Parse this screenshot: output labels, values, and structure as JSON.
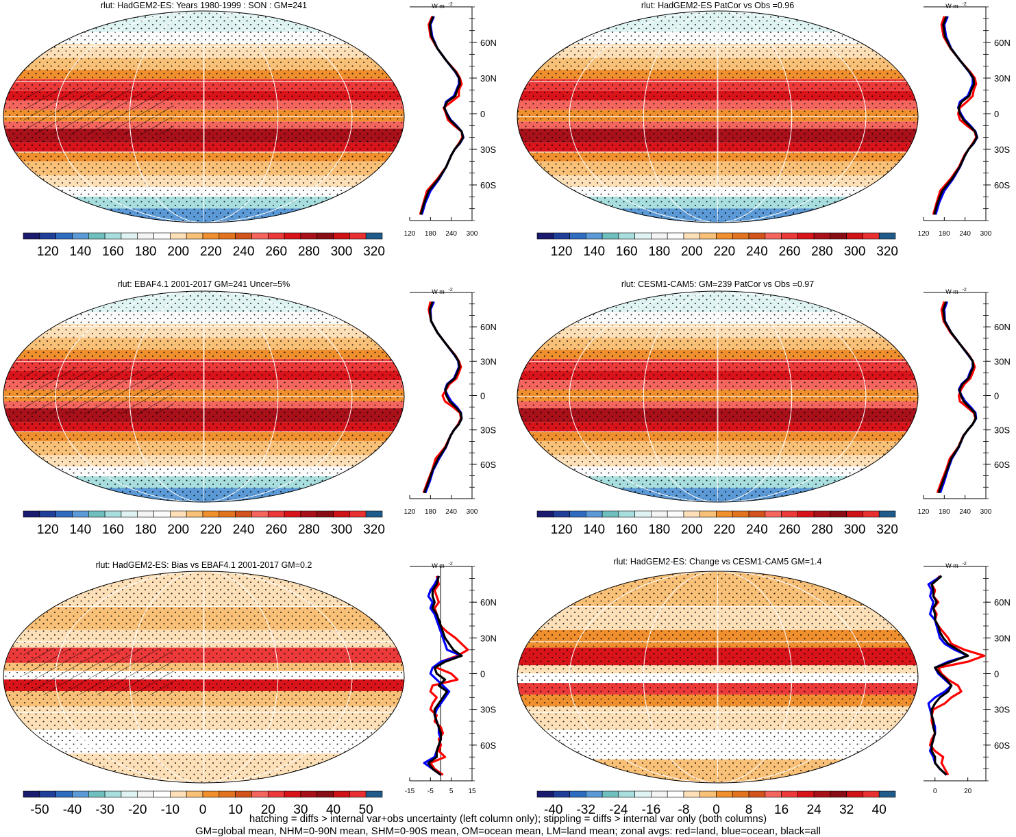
{
  "figure": {
    "caption_line1": "hatching = diffs > internal var+obs uncertainty (left column only); stippling = diffs > internal var only (both columns)",
    "caption_line2": "GM=global mean, NHM=0-90N mean, SHM=0-90S mean, OM=ocean mean, LM=land mean; zonal avgs: red=land, blue=ocean, black=all"
  },
  "colors": {
    "abs_palette": [
      "#1a1a6e",
      "#1f3f99",
      "#2e6cc2",
      "#5b9ad6",
      "#6fbfbf",
      "#a8dede",
      "#dff3f3",
      "#f4f4f4",
      "#fbfbfb",
      "#fde0b8",
      "#f9c078",
      "#ef8f2e",
      "#e3741f",
      "#d2531c",
      "#f4655e",
      "#ec3a3a",
      "#d8141a",
      "#a8101a",
      "#880d15",
      "#cf1216",
      "#e83030",
      "#1f5c8c"
    ],
    "diff_palette": [
      "#1a1a6e",
      "#1f3f99",
      "#2e6cc2",
      "#5b9ad6",
      "#6fbfbf",
      "#a8dede",
      "#dff3f3",
      "#f4f4f4",
      "#ffffff",
      "#fde0b8",
      "#f9c078",
      "#ef8f2e",
      "#e3741f",
      "#d2531c",
      "#f4655e",
      "#ec3a3a",
      "#d8141a",
      "#a8101a",
      "#880d15",
      "#cf1216",
      "#e83030",
      "#1f5c8c"
    ],
    "land": "#ff0000",
    "ocean": "#0000ff",
    "all": "#000000"
  },
  "chart_data": [
    {
      "type": "heatmap",
      "title": "rlut: HadGEM2-ES: Years 1980-1999 : SON : GM=241",
      "colorbar_ticks": [
        "120",
        "140",
        "160",
        "180",
        "200",
        "220",
        "240",
        "260",
        "280",
        "300",
        "320"
      ],
      "profile_unit": "W m",
      "profile_unit_exp": "-2",
      "profile_xticks": [
        "120",
        "180",
        "240",
        "300"
      ],
      "profile_xrange": [
        120,
        300
      ],
      "lat_ticks": [
        "60N",
        "30N",
        "0",
        "30S",
        "60S"
      ],
      "lat_values": [
        60,
        30,
        0,
        -30,
        -60
      ],
      "zero_line": false,
      "lat": [
        82,
        75,
        65,
        55,
        45,
        35,
        30,
        25,
        20,
        15,
        10,
        5,
        0,
        -5,
        -10,
        -15,
        -20,
        -25,
        -30,
        -35,
        -45,
        -55,
        -65,
        -75,
        -85
      ],
      "series": [
        {
          "name": "land",
          "values": [
            185,
            175,
            180,
            200,
            225,
            255,
            265,
            270,
            262,
            262,
            240,
            218,
            225,
            230,
            248,
            270,
            272,
            262,
            250,
            240,
            225,
            200,
            170,
            160,
            150
          ]
        },
        {
          "name": "ocean",
          "values": [
            190,
            180,
            185,
            200,
            225,
            252,
            262,
            262,
            255,
            248,
            225,
            220,
            228,
            238,
            255,
            270,
            275,
            265,
            250,
            240,
            225,
            205,
            180,
            165,
            155
          ]
        },
        {
          "name": "all",
          "values": [
            188,
            178,
            183,
            200,
            225,
            253,
            263,
            265,
            257,
            252,
            228,
            220,
            227,
            236,
            253,
            270,
            274,
            264,
            250,
            240,
            225,
            203,
            175,
            162,
            152
          ]
        }
      ]
    },
    {
      "type": "heatmap",
      "title": "rlut: HadGEM2-ES PatCor vs Obs =0.96",
      "colorbar_ticks": [
        "120",
        "140",
        "160",
        "180",
        "200",
        "220",
        "240",
        "260",
        "280",
        "300",
        "320"
      ],
      "profile_unit": "W m",
      "profile_unit_exp": "-2",
      "profile_xticks": [
        "120",
        "180",
        "240",
        "300"
      ],
      "profile_xrange": [
        120,
        300
      ],
      "lat_ticks": [
        "60N",
        "30N",
        "0",
        "30S",
        "60S"
      ],
      "lat_values": [
        60,
        30,
        0,
        -30,
        -60
      ],
      "zero_line": false,
      "lat": [
        82,
        75,
        65,
        55,
        45,
        35,
        30,
        25,
        20,
        15,
        10,
        5,
        0,
        -5,
        -10,
        -15,
        -20,
        -25,
        -30,
        -35,
        -45,
        -55,
        -65,
        -75,
        -85
      ],
      "series": [
        {
          "name": "land",
          "values": [
            180,
            172,
            178,
            198,
            225,
            255,
            268,
            272,
            265,
            262,
            245,
            225,
            220,
            225,
            245,
            268,
            272,
            262,
            250,
            238,
            222,
            198,
            168,
            158,
            148
          ]
        },
        {
          "name": "ocean",
          "values": [
            190,
            180,
            185,
            200,
            225,
            252,
            262,
            262,
            255,
            248,
            225,
            220,
            228,
            238,
            255,
            270,
            275,
            265,
            250,
            240,
            225,
            205,
            180,
            165,
            155
          ]
        },
        {
          "name": "all",
          "values": [
            186,
            177,
            182,
            199,
            225,
            253,
            264,
            266,
            258,
            252,
            230,
            221,
            225,
            235,
            252,
            269,
            274,
            264,
            250,
            240,
            224,
            202,
            174,
            161,
            151
          ]
        }
      ]
    },
    {
      "type": "heatmap",
      "title": "rlut: EBAF4.1 2001-2017 GM=241 Uncer=5%",
      "colorbar_ticks": [
        "120",
        "140",
        "160",
        "180",
        "200",
        "220",
        "240",
        "260",
        "280",
        "300",
        "320"
      ],
      "profile_unit": "W m",
      "profile_unit_exp": "-2",
      "profile_xticks": [
        "120",
        "180",
        "240",
        "300"
      ],
      "profile_xrange": [
        120,
        300
      ],
      "lat_ticks": [
        "60N",
        "30N",
        "0",
        "30S",
        "60S"
      ],
      "lat_values": [
        60,
        30,
        0,
        -30,
        -60
      ],
      "zero_line": false,
      "lat": [
        82,
        75,
        65,
        55,
        45,
        35,
        30,
        25,
        20,
        15,
        10,
        5,
        0,
        -5,
        -10,
        -15,
        -20,
        -25,
        -30,
        -35,
        -45,
        -55,
        -65,
        -75,
        -85
      ],
      "series": [
        {
          "name": "land",
          "values": [
            180,
            175,
            182,
            200,
            225,
            252,
            262,
            268,
            262,
            255,
            235,
            225,
            215,
            222,
            245,
            265,
            268,
            260,
            248,
            238,
            222,
            195,
            185,
            172,
            160
          ]
        },
        {
          "name": "ocean",
          "values": [
            190,
            180,
            182,
            200,
            225,
            250,
            260,
            262,
            255,
            248,
            228,
            222,
            230,
            240,
            256,
            268,
            270,
            262,
            248,
            238,
            225,
            205,
            188,
            178,
            165
          ]
        },
        {
          "name": "all",
          "values": [
            186,
            178,
            182,
            200,
            225,
            251,
            261,
            264,
            257,
            250,
            230,
            223,
            226,
            235,
            252,
            267,
            270,
            262,
            248,
            238,
            224,
            202,
            186,
            175,
            162
          ]
        }
      ]
    },
    {
      "type": "heatmap",
      "title": "rlut: CESM1-CAM5: GM=239 PatCor vs Obs =0.97",
      "colorbar_ticks": [
        "120",
        "140",
        "160",
        "180",
        "200",
        "220",
        "240",
        "260",
        "280",
        "300",
        "320"
      ],
      "profile_unit": "W m",
      "profile_unit_exp": "-2",
      "profile_xticks": [
        "120",
        "180",
        "240",
        "300"
      ],
      "profile_xrange": [
        120,
        300
      ],
      "lat_ticks": [
        "60N",
        "30N",
        "0",
        "30S",
        "60S"
      ],
      "lat_values": [
        60,
        30,
        0,
        -30,
        -60
      ],
      "zero_line": false,
      "lat": [
        82,
        75,
        65,
        55,
        45,
        35,
        30,
        25,
        20,
        15,
        10,
        5,
        0,
        -5,
        -10,
        -15,
        -20,
        -25,
        -30,
        -35,
        -45,
        -55,
        -65,
        -75,
        -85
      ],
      "series": [
        {
          "name": "land",
          "values": [
            180,
            172,
            178,
            198,
            225,
            252,
            262,
            268,
            262,
            255,
            238,
            228,
            222,
            225,
            245,
            265,
            270,
            262,
            248,
            235,
            220,
            196,
            185,
            172,
            160
          ]
        },
        {
          "name": "ocean",
          "values": [
            188,
            180,
            182,
            200,
            225,
            250,
            262,
            262,
            254,
            248,
            230,
            222,
            230,
            240,
            256,
            270,
            272,
            262,
            248,
            236,
            222,
            202,
            190,
            180,
            168
          ]
        },
        {
          "name": "all",
          "values": [
            185,
            177,
            181,
            200,
            225,
            251,
            262,
            264,
            256,
            250,
            232,
            224,
            228,
            236,
            252,
            268,
            271,
            262,
            248,
            236,
            221,
            200,
            188,
            176,
            164
          ]
        }
      ]
    },
    {
      "type": "heatmap",
      "title": "rlut: HadGEM2-ES: Bias vs EBAF4.1 2001-2017  GM=0.2",
      "colorbar_ticks": [
        "-50",
        "-40",
        "-30",
        "-20",
        "-10",
        "0",
        "10",
        "20",
        "30",
        "40",
        "50"
      ],
      "profile_unit": "W m",
      "profile_unit_exp": "-2",
      "profile_xticks": [
        "-15",
        "-5",
        "5",
        "15"
      ],
      "profile_xrange": [
        -15,
        15
      ],
      "lat_ticks": [
        "60N",
        "30N",
        "0",
        "30S",
        "60S"
      ],
      "lat_values": [
        60,
        30,
        0,
        -30,
        -60
      ],
      "zero_line": true,
      "lat": [
        82,
        75,
        70,
        65,
        60,
        55,
        50,
        45,
        40,
        35,
        30,
        25,
        20,
        15,
        10,
        5,
        0,
        -5,
        -10,
        -15,
        -20,
        -25,
        -30,
        -35,
        -40,
        -45,
        -50,
        -55,
        -60,
        -65,
        -70,
        -75,
        -80,
        -85
      ],
      "series": [
        {
          "name": "land",
          "values": [
            -2,
            -1,
            -3,
            -2,
            -1,
            -3,
            -2,
            -1,
            0,
            3,
            7,
            10,
            13,
            8,
            0,
            -2,
            5,
            8,
            -4,
            -5,
            -2,
            -4,
            -5,
            -2,
            -3,
            0,
            1,
            -1,
            0,
            -1,
            2,
            -5,
            -3,
            1
          ]
        },
        {
          "name": "ocean",
          "values": [
            -1,
            -3,
            -5,
            -6,
            -4,
            -5,
            -3,
            -2,
            -1,
            0,
            1,
            2,
            3,
            10,
            0,
            -4,
            -5,
            -2,
            1,
            4,
            2,
            0,
            -2,
            -3,
            -2,
            -1,
            -1,
            0,
            -1,
            -2,
            -3,
            -8,
            -4,
            0
          ]
        },
        {
          "name": "all",
          "values": [
            -1,
            -2,
            -4,
            -4,
            -3,
            -4,
            -2,
            -1,
            0,
            1,
            2,
            4,
            6,
            10,
            2,
            -3,
            -2,
            2,
            -1,
            3,
            1,
            -1,
            -3,
            -3,
            -2,
            -1,
            0,
            0,
            -1,
            -2,
            -2,
            -6,
            -4,
            0
          ]
        }
      ]
    },
    {
      "type": "heatmap",
      "title": "rlut: HadGEM2-ES: Change vs CESM1-CAM5 GM=1.4",
      "colorbar_ticks": [
        "-40",
        "-32",
        "-24",
        "-16",
        "-8",
        "0",
        "8",
        "16",
        "24",
        "32",
        "40"
      ],
      "profile_unit": "W m",
      "profile_unit_exp": "-2",
      "profile_xticks": [
        "0",
        "20"
      ],
      "profile_xrange": [
        -7,
        31
      ],
      "lat_ticks": [
        "60N",
        "30N",
        "0",
        "30S",
        "60S"
      ],
      "lat_values": [
        60,
        30,
        0,
        -30,
        -60
      ],
      "zero_line": false,
      "lat": [
        82,
        75,
        70,
        65,
        60,
        55,
        50,
        45,
        40,
        35,
        30,
        25,
        20,
        15,
        10,
        5,
        0,
        -5,
        -10,
        -15,
        -20,
        -25,
        -30,
        -35,
        -40,
        -45,
        -50,
        -55,
        -60,
        -65,
        -70,
        -75,
        -80,
        -85
      ],
      "series": [
        {
          "name": "land",
          "values": [
            3,
            -2,
            0,
            -1,
            2,
            -1,
            1,
            0,
            2,
            5,
            8,
            10,
            18,
            30,
            20,
            2,
            4,
            8,
            14,
            16,
            10,
            6,
            -1,
            -2,
            -2,
            -1,
            0,
            -2,
            -3,
            0,
            5,
            4,
            6,
            8
          ]
        },
        {
          "name": "ocean",
          "values": [
            4,
            -4,
            -2,
            -3,
            -1,
            -2,
            -3,
            0,
            1,
            2,
            3,
            6,
            12,
            20,
            8,
            0,
            2,
            6,
            10,
            6,
            0,
            -4,
            -3,
            -2,
            -1,
            0,
            0,
            -1,
            -2,
            -3,
            -1,
            0,
            3,
            7
          ]
        },
        {
          "name": "all",
          "values": [
            4,
            -2,
            -1,
            -1,
            1,
            -1,
            0,
            0,
            2,
            3,
            5,
            8,
            14,
            20,
            10,
            0,
            3,
            7,
            10,
            8,
            3,
            0,
            -2,
            -2,
            -1,
            -1,
            0,
            -1,
            -2,
            -2,
            0,
            0,
            3,
            7
          ]
        }
      ]
    }
  ]
}
